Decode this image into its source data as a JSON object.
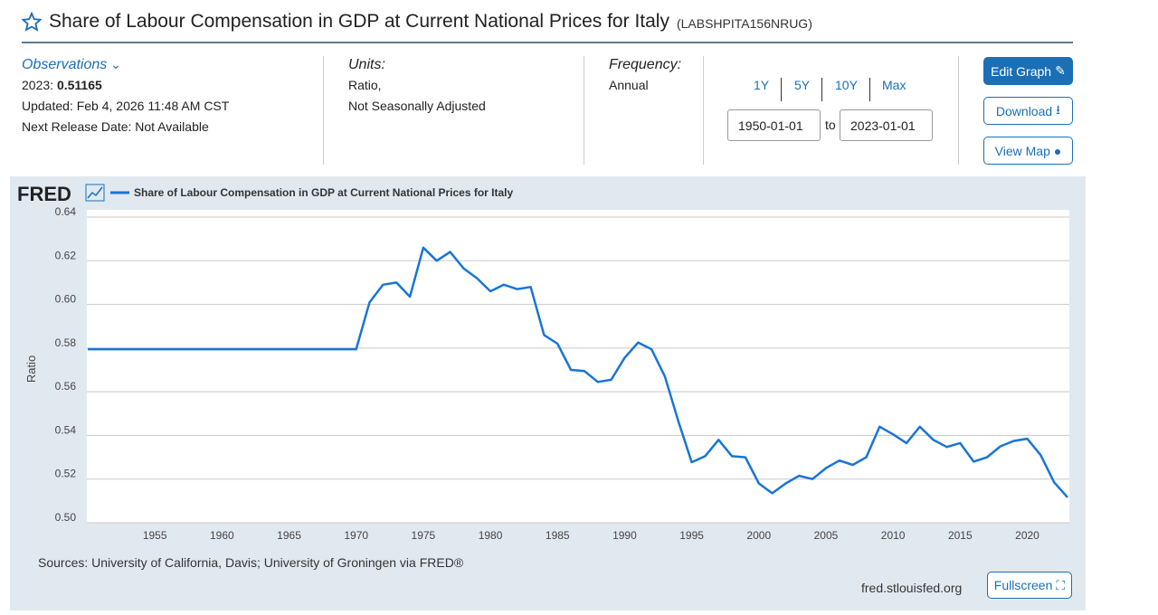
{
  "header": {
    "title": "Share of Labour Compensation in GDP at Current National Prices for Italy",
    "series_id": "(LABSHPITA156NRUG)"
  },
  "observations": {
    "label": "Observations",
    "latest_label": "2023:",
    "latest_value": "0.51165",
    "updated": "Updated: Feb 4, 2026 11:48 AM CST",
    "next_release": "Next Release Date: Not Available"
  },
  "units": {
    "label": "Units:",
    "line1": "Ratio,",
    "line2": "Not Seasonally Adjusted"
  },
  "frequency": {
    "label": "Frequency:",
    "value": "Annual"
  },
  "range": {
    "buttons": [
      "1Y",
      "5Y",
      "10Y",
      "Max"
    ],
    "start": "1950-01-01",
    "to": "to",
    "end": "2023-01-01"
  },
  "actions": {
    "edit": "Edit Graph",
    "download": "Download",
    "map": "View Map",
    "fullscreen": "Fullscreen"
  },
  "footer": {
    "sources": "Sources: University of California, Davis; University of Groningen via FRED®",
    "site": "fred.stlouisfed.org"
  },
  "colors": {
    "line": "#1a74d6",
    "accent": "#1a6fb5",
    "panel": "#e1e9f0"
  },
  "chart_data": {
    "type": "line",
    "logo": "FRED",
    "ylabel": "Ratio",
    "xlabel": "",
    "ylim": [
      0.5,
      0.64
    ],
    "xlim": [
      1950,
      2023
    ],
    "yticks": [
      0.5,
      0.52,
      0.54,
      0.56,
      0.58,
      0.6,
      0.62,
      0.64
    ],
    "xticks": [
      1955,
      1960,
      1965,
      1970,
      1975,
      1980,
      1985,
      1990,
      1995,
      2000,
      2005,
      2010,
      2015,
      2020
    ],
    "grid": true,
    "legend": "top-left",
    "series": [
      {
        "name": "Share of Labour Compensation in GDP at Current National Prices for Italy",
        "x": [
          1950,
          1951,
          1952,
          1953,
          1954,
          1955,
          1956,
          1957,
          1958,
          1959,
          1960,
          1961,
          1962,
          1963,
          1964,
          1965,
          1966,
          1967,
          1968,
          1969,
          1970,
          1971,
          1972,
          1973,
          1974,
          1975,
          1976,
          1977,
          1978,
          1979,
          1980,
          1981,
          1982,
          1983,
          1984,
          1985,
          1986,
          1987,
          1988,
          1989,
          1990,
          1991,
          1992,
          1993,
          1994,
          1995,
          1996,
          1997,
          1998,
          1999,
          2000,
          2001,
          2002,
          2003,
          2004,
          2005,
          2006,
          2007,
          2008,
          2009,
          2010,
          2011,
          2012,
          2013,
          2014,
          2015,
          2016,
          2017,
          2018,
          2019,
          2020,
          2021,
          2022,
          2023
        ],
        "values": [
          0.5795,
          0.5795,
          0.5795,
          0.5795,
          0.5795,
          0.5795,
          0.5795,
          0.5795,
          0.5795,
          0.5795,
          0.5795,
          0.5795,
          0.5795,
          0.5795,
          0.5795,
          0.5795,
          0.5795,
          0.5795,
          0.5795,
          0.5795,
          0.5795,
          0.601,
          0.609,
          0.61,
          0.6035,
          0.626,
          0.62,
          0.624,
          0.6165,
          0.612,
          0.606,
          0.609,
          0.607,
          0.608,
          0.586,
          0.582,
          0.57,
          0.5695,
          0.5645,
          0.5655,
          0.5755,
          0.5825,
          0.5795,
          0.567,
          0.5465,
          0.5277,
          0.5305,
          0.538,
          0.5305,
          0.53,
          0.518,
          0.5135,
          0.518,
          0.5215,
          0.52,
          0.525,
          0.5285,
          0.5265,
          0.53,
          0.544,
          0.5405,
          0.5365,
          0.544,
          0.538,
          0.5347,
          0.5365,
          0.528,
          0.53,
          0.535,
          0.5375,
          0.5385,
          0.531,
          0.5185,
          0.51165
        ]
      }
    ]
  }
}
